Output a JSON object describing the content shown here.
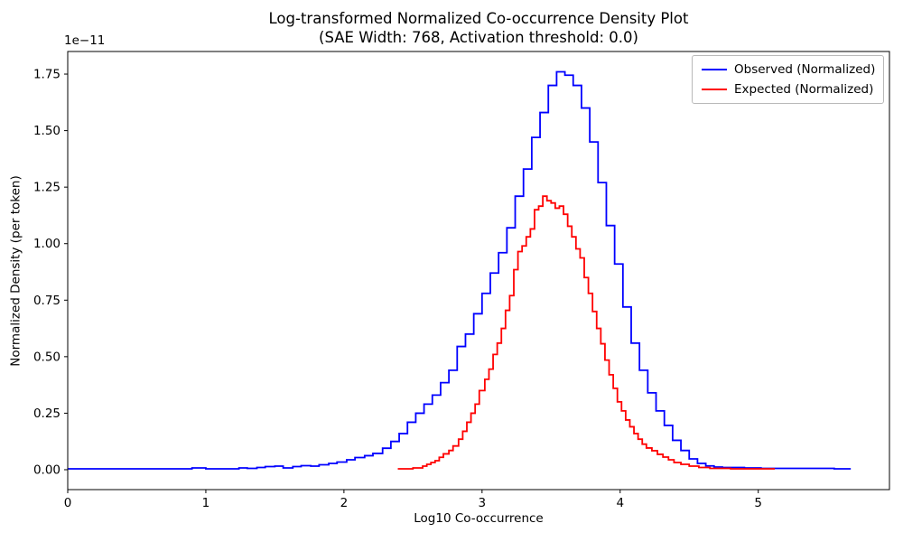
{
  "figure": {
    "title_line1": "Log-transformed Normalized Co-occurrence Density Plot",
    "title_line2": "(SAE Width: 768, Activation threshold: 0.0)"
  },
  "chart_data": {
    "type": "line",
    "drawstyle": "steps-post",
    "title": "Log-transformed Normalized Co-occurrence Density Plot (SAE Width: 768, Activation threshold: 0.0)",
    "xlabel": "Log10 Co-occurrence",
    "ylabel": "Normalized Density (per token)",
    "y_offset_text": "1e−11",
    "y_unit_scale": "values listed in units of 1e-11",
    "grid": false,
    "legend_position": "upper right",
    "xlim": [
      0,
      5.95
    ],
    "ylim": [
      -0.088,
      1.85
    ],
    "xticks": [
      0,
      1,
      2,
      3,
      4,
      5
    ],
    "xtick_labels": [
      "0",
      "1",
      "2",
      "3",
      "4",
      "5"
    ],
    "yticks": [
      0,
      0.25,
      0.5,
      0.75,
      1.0,
      1.25,
      1.5,
      1.75
    ],
    "ytick_labels": [
      "0.00",
      "0.25",
      "0.50",
      "0.75",
      "1.00",
      "1.25",
      "1.50",
      "1.75"
    ],
    "series": [
      {
        "name": "Observed (Normalized)",
        "color": "#0000ff",
        "x_end": 5.67,
        "x": [
          0.0,
          0.9,
          1.0,
          1.24,
          1.3,
          1.37,
          1.43,
          1.5,
          1.56,
          1.63,
          1.69,
          1.76,
          1.82,
          1.89,
          1.95,
          2.02,
          2.08,
          2.15,
          2.21,
          2.28,
          2.34,
          2.4,
          2.46,
          2.52,
          2.58,
          2.64,
          2.7,
          2.76,
          2.82,
          2.88,
          2.94,
          3.0,
          3.06,
          3.12,
          3.18,
          3.24,
          3.3,
          3.36,
          3.42,
          3.48,
          3.54,
          3.6,
          3.66,
          3.72,
          3.78,
          3.84,
          3.9,
          3.96,
          4.02,
          4.08,
          4.14,
          4.2,
          4.26,
          4.32,
          4.38,
          4.44,
          4.5,
          4.56,
          4.62,
          4.68,
          4.74,
          4.9,
          5.02,
          5.4,
          5.55
        ],
        "y": [
          0.004,
          0.008,
          0.004,
          0.008,
          0.006,
          0.01,
          0.014,
          0.016,
          0.008,
          0.014,
          0.018,
          0.016,
          0.022,
          0.028,
          0.034,
          0.044,
          0.054,
          0.062,
          0.072,
          0.095,
          0.125,
          0.16,
          0.21,
          0.25,
          0.29,
          0.33,
          0.385,
          0.44,
          0.545,
          0.6,
          0.69,
          0.78,
          0.87,
          0.96,
          1.07,
          1.21,
          1.33,
          1.47,
          1.58,
          1.7,
          1.76,
          1.745,
          1.7,
          1.6,
          1.45,
          1.27,
          1.08,
          0.91,
          0.72,
          0.56,
          0.44,
          0.34,
          0.26,
          0.196,
          0.13,
          0.085,
          0.048,
          0.028,
          0.017,
          0.012,
          0.01,
          0.008,
          0.006,
          0.006,
          0.004
        ]
      },
      {
        "name": "Expected (Normalized)",
        "color": "#ff0000",
        "x_end": 5.12,
        "x": [
          2.39,
          2.5,
          2.57,
          2.6,
          2.63,
          2.66,
          2.69,
          2.72,
          2.76,
          2.79,
          2.83,
          2.86,
          2.89,
          2.92,
          2.95,
          2.98,
          3.02,
          3.05,
          3.08,
          3.11,
          3.14,
          3.17,
          3.2,
          3.23,
          3.26,
          3.29,
          3.32,
          3.35,
          3.38,
          3.41,
          3.44,
          3.47,
          3.5,
          3.53,
          3.56,
          3.59,
          3.62,
          3.65,
          3.68,
          3.71,
          3.74,
          3.77,
          3.8,
          3.83,
          3.86,
          3.89,
          3.92,
          3.95,
          3.98,
          4.01,
          4.04,
          4.07,
          4.1,
          4.13,
          4.16,
          4.19,
          4.23,
          4.27,
          4.31,
          4.35,
          4.39,
          4.44,
          4.5,
          4.57,
          4.65,
          4.8
        ],
        "y": [
          0.004,
          0.008,
          0.016,
          0.024,
          0.032,
          0.04,
          0.055,
          0.07,
          0.085,
          0.105,
          0.135,
          0.17,
          0.21,
          0.25,
          0.29,
          0.35,
          0.4,
          0.445,
          0.51,
          0.56,
          0.625,
          0.705,
          0.77,
          0.885,
          0.965,
          0.99,
          1.03,
          1.065,
          1.15,
          1.166,
          1.21,
          1.19,
          1.18,
          1.157,
          1.166,
          1.13,
          1.077,
          1.03,
          0.977,
          0.937,
          0.85,
          0.78,
          0.7,
          0.625,
          0.557,
          0.485,
          0.42,
          0.36,
          0.3,
          0.26,
          0.22,
          0.19,
          0.16,
          0.135,
          0.113,
          0.096,
          0.084,
          0.068,
          0.056,
          0.044,
          0.032,
          0.024,
          0.016,
          0.01,
          0.006,
          0.004
        ]
      }
    ]
  }
}
